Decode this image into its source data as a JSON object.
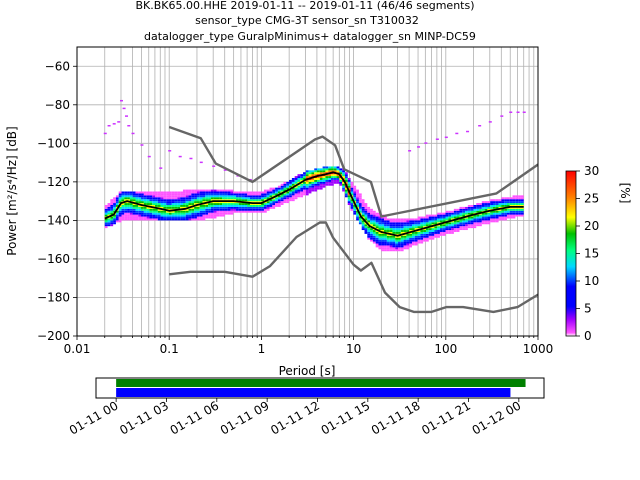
{
  "title": {
    "line1": "BK.BK65.00.HHE   2019-01-11 -- 2019-01-11  (46/46 segments)",
    "line2": "sensor_type CMG-3T sensor_sn T310032",
    "line3": "datalogger_type GuralpMinimus+ datalogger_sn MINP-DC59"
  },
  "chart_data": [
    {
      "type": "heatmap",
      "title": "",
      "xlabel": "Period [s]",
      "ylabel": "Power [m²/s⁴/Hz] [dB]",
      "xscale": "log",
      "xlim": [
        0.01,
        1000
      ],
      "ylim": [
        -200,
        -50
      ],
      "x_tick_labels": [
        "0.01",
        "0.1",
        "1",
        "10",
        "100",
        "1000"
      ],
      "y_tick_labels": [
        "−200",
        "−180",
        "−160",
        "−140",
        "−120",
        "−100",
        "−80",
        "−60"
      ],
      "grid": true,
      "colorbar": {
        "label": "[%]",
        "range": [
          0,
          30
        ],
        "tick_labels": [
          "0",
          "5",
          "10",
          "15",
          "20",
          "25",
          "30"
        ]
      },
      "series": [
        {
          "role": "noise-model-high",
          "color": "#666666",
          "x": [
            0.1,
            0.22,
            0.32,
            0.8,
            3.8,
            4.6,
            6.3,
            7.9,
            15.4,
            20,
            354.8,
            1000
          ],
          "y": [
            -91.5,
            -97.4,
            -110.5,
            -120,
            -98,
            -96.5,
            -101,
            -113.5,
            -120,
            -138,
            -126,
            -111
          ]
        },
        {
          "role": "noise-model-low",
          "color": "#666666",
          "x": [
            0.1,
            0.17,
            0.4,
            0.8,
            1.24,
            2.4,
            4.3,
            5,
            6,
            10,
            12,
            15.6,
            21.9,
            31.6,
            45,
            70,
            101,
            154,
            328,
            600,
            1000
          ],
          "y": [
            -168,
            -166.7,
            -166.7,
            -169.2,
            -163.7,
            -148.6,
            -141.1,
            -141.1,
            -149,
            -163,
            -166,
            -162,
            -177.5,
            -185,
            -187.5,
            -187.5,
            -185,
            -185,
            -187.5,
            -185,
            -178.5
          ]
        },
        {
          "role": "mode",
          "color": "#000000",
          "x": [
            0.02,
            0.025,
            0.03,
            0.035,
            0.05,
            0.08,
            0.1,
            0.15,
            0.2,
            0.3,
            0.5,
            0.8,
            1,
            1.5,
            2,
            3,
            4,
            5,
            6,
            7,
            8,
            10,
            12,
            15,
            20,
            30,
            50,
            100,
            200,
            300,
            500,
            700
          ],
          "y": [
            -139,
            -137,
            -131,
            -130,
            -132,
            -134,
            -135,
            -134,
            -132,
            -130,
            -130,
            -131,
            -131,
            -127,
            -124,
            -119,
            -117,
            -116,
            -115,
            -116,
            -120,
            -130,
            -138,
            -143,
            -146,
            -148,
            -145,
            -141,
            -137,
            -135,
            -133,
            -133
          ]
        }
      ],
      "density_fill": {
        "upper_envelope": {
          "x": [
            0.02,
            0.025,
            0.03,
            0.04,
            0.06,
            0.1,
            0.2,
            0.5,
            0.9,
            1.5,
            3,
            6,
            8,
            10,
            15,
            25,
            50,
            100,
            300,
            700
          ],
          "y": [
            -133,
            -129,
            -125,
            -125,
            -125,
            -126,
            -124,
            -125,
            -126,
            -123,
            -115,
            -112,
            -114,
            -122,
            -134,
            -140,
            -139,
            -136,
            -130,
            -127
          ]
        },
        "lower_envelope": {
          "x": [
            0.02,
            0.03,
            0.05,
            0.1,
            0.2,
            0.5,
            1,
            2,
            5,
            7,
            10,
            15,
            20,
            30,
            50,
            100,
            300,
            700
          ],
          "y": [
            -144,
            -140,
            -139,
            -140,
            -140,
            -136,
            -136,
            -130,
            -122,
            -120,
            -136,
            -150,
            -155,
            -156,
            -152,
            -147,
            -141,
            -137
          ]
        }
      },
      "scatter_outliers": {
        "color": "#cc33ff",
        "x": [
          0.02,
          0.022,
          0.025,
          0.028,
          0.03,
          0.032,
          0.034,
          0.036,
          0.04,
          0.05,
          0.06,
          0.08,
          0.1,
          0.13,
          0.17,
          0.22,
          0.3,
          0.4,
          0.55,
          0.75,
          40,
          50,
          60,
          80,
          100,
          130,
          170,
          230,
          300,
          400,
          500,
          600,
          700
        ],
        "y": [
          -95,
          -91,
          -90,
          -89,
          -78,
          -82,
          -86,
          -91,
          -95,
          -101,
          -107,
          -113,
          -104,
          -107,
          -108,
          -110,
          -112,
          -114,
          -117,
          -119,
          -104,
          -102,
          -100,
          -98,
          -97,
          -95,
          -94,
          -91,
          -89,
          -86,
          -84,
          -84,
          -84
        ]
      }
    },
    {
      "type": "timeline",
      "xlabel": "",
      "tick_labels": [
        "01-11 00",
        "01-11 03",
        "01-11 06",
        "01-11 09",
        "01-11 12",
        "01-11 15",
        "01-11 18",
        "01-11 21",
        "01-12 00"
      ],
      "bars": [
        {
          "role": "data-availability",
          "color": "#008000",
          "start_hours": 0,
          "end_hours": 24.4
        },
        {
          "role": "psd-segments",
          "color": "#0000ff",
          "start_hours": 0,
          "end_hours": 23.5
        }
      ],
      "xlim_hours": [
        -1.2,
        25.5
      ]
    }
  ]
}
